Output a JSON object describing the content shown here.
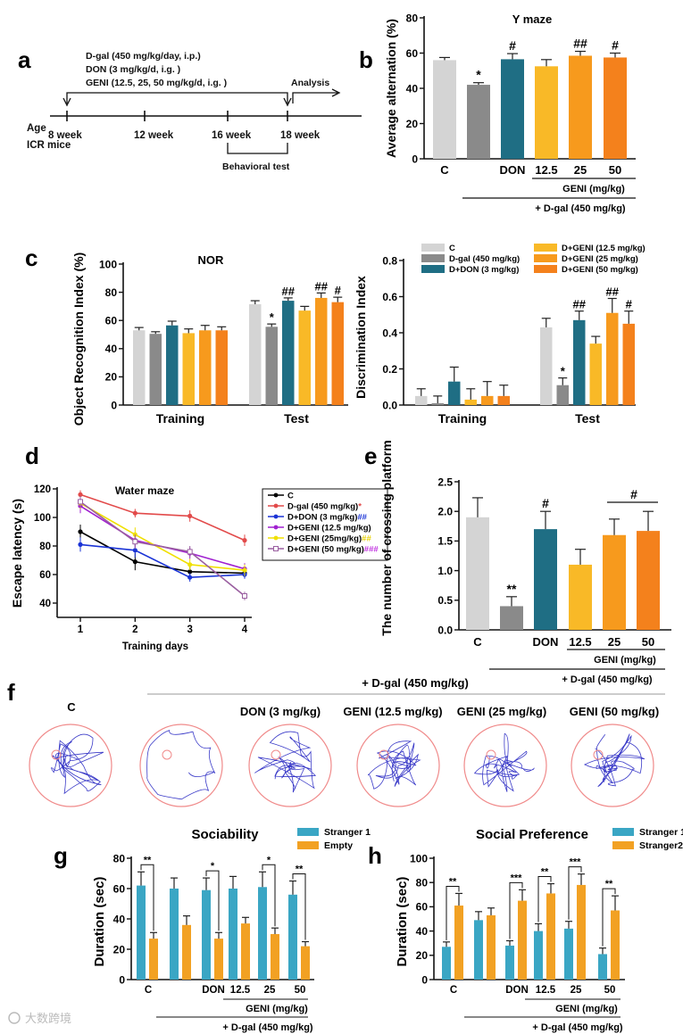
{
  "colors": {
    "C": "#d4d4d4",
    "Dgal": "#8a8a8a",
    "DON": "#1f6e84",
    "G12": "#f9b927",
    "G25": "#f79a1d",
    "G50": "#f4811c",
    "stranger1": "#3aa6c4",
    "empty": "#f2a123",
    "wmC": "#000000",
    "wmDgal": "#e24a4a",
    "wmDON": "#1a33d6",
    "wmG12": "#a020d0",
    "wmG25": "#f0e000",
    "wmG50": "#9a5fa0",
    "track": "#3a3ac8",
    "arena": "#f08a8a",
    "axis": "#222222"
  },
  "watermark": "大数跨境",
  "panels": {
    "a": {
      "letter": "a",
      "lines": [
        "D-gal (450 mg/kg/day, i.p.)",
        "DON (3 mg/kg/d, i.g. )",
        "GENI (12.5, 25, 50 mg/kg/d, i.g. )"
      ],
      "analysis": "Analysis",
      "age": "Age",
      "mice": "ICR mice",
      "weeks": [
        "8 week",
        "12 week",
        "16 week",
        "18 week"
      ],
      "behavioral": "Behavioral test"
    },
    "b": {
      "letter": "b"
    },
    "c": {
      "letter": "c"
    },
    "d": {
      "letter": "d"
    },
    "e": {
      "letter": "e"
    },
    "f": {
      "letter": "f",
      "header": "+ D-gal (450 mg/kg)",
      "labels": [
        "C",
        "",
        "DON (3 mg/kg)",
        "GENI (12.5 mg/kg)",
        "GENI (25 mg/kg)",
        "GENI (50 mg/kg)"
      ]
    },
    "g": {
      "letter": "g"
    },
    "h": {
      "letter": "h"
    }
  },
  "chart_data": [
    {
      "id": "b",
      "type": "bar",
      "title": "Y maze",
      "ylabel": "Average alternation (%)",
      "ylim": [
        0,
        80
      ],
      "yticks": [
        0,
        20,
        40,
        60,
        80
      ],
      "categories": [
        "C",
        "",
        "DON",
        "12.5",
        "25",
        "50"
      ],
      "values": [
        56,
        42,
        56.5,
        52.5,
        58.5,
        57.5
      ],
      "errors": [
        1.5,
        1.2,
        3.2,
        3.8,
        2.5,
        2.5
      ],
      "annotations": [
        "",
        "*",
        "#",
        "",
        "##",
        "#"
      ],
      "group_label": "GENI (mg/kg)",
      "treatment_label": "+ D-gal (450 mg/kg)"
    },
    {
      "id": "c1",
      "type": "bar",
      "title": "NOR",
      "ylabel": "Object Recognition Index (%)",
      "ylim": [
        0,
        100
      ],
      "yticks": [
        0,
        20,
        40,
        60,
        80,
        100
      ],
      "groups": [
        "Training",
        "Test"
      ],
      "series": [
        {
          "name": "C",
          "values": [
            53,
            71.5
          ],
          "errors": [
            2,
            2.5
          ]
        },
        {
          "name": "D-gal (450 mg/kg)",
          "values": [
            50.5,
            55.5
          ],
          "errors": [
            1.5,
            2
          ]
        },
        {
          "name": "D+DON (3 mg/kg)",
          "values": [
            56.5,
            74
          ],
          "errors": [
            3,
            2
          ]
        },
        {
          "name": "D+GENI (12.5 mg/kg)",
          "values": [
            51,
            67
          ],
          "errors": [
            3,
            3
          ]
        },
        {
          "name": "D+GENI (25 mg/kg)",
          "values": [
            53,
            76
          ],
          "errors": [
            3.5,
            3.5
          ]
        },
        {
          "name": "D+GENI (50 mg/kg)",
          "values": [
            53,
            73
          ],
          "errors": [
            2.5,
            3.5
          ]
        }
      ],
      "annotations": [
        [
          "",
          "",
          "",
          "",
          "",
          ""
        ],
        [
          "",
          "*",
          "##",
          "",
          "##",
          "#"
        ]
      ]
    },
    {
      "id": "c2",
      "type": "bar",
      "title": "",
      "ylabel": "Discrimination Index",
      "ylim": [
        0,
        0.8
      ],
      "yticks": [
        "0.0",
        "0.2",
        "0.4",
        "0.6",
        "0.8"
      ],
      "groups": [
        "Training",
        "Test"
      ],
      "series": [
        {
          "name": "C",
          "values": [
            0.05,
            0.43
          ],
          "errors": [
            0.04,
            0.05
          ]
        },
        {
          "name": "D-gal (450 mg/kg)",
          "values": [
            0.01,
            0.11
          ],
          "errors": [
            0.04,
            0.04
          ]
        },
        {
          "name": "D+DON (3 mg/kg)",
          "values": [
            0.13,
            0.47
          ],
          "errors": [
            0.08,
            0.05
          ]
        },
        {
          "name": "D+GENI (12.5 mg/kg)",
          "values": [
            0.03,
            0.34
          ],
          "errors": [
            0.06,
            0.04
          ]
        },
        {
          "name": "D+GENI (25 mg/kg)",
          "values": [
            0.05,
            0.51
          ],
          "errors": [
            0.08,
            0.08
          ]
        },
        {
          "name": "D+GENI (50 mg/kg)",
          "values": [
            0.05,
            0.45
          ],
          "errors": [
            0.06,
            0.07
          ]
        }
      ],
      "annotations": [
        [
          "",
          "",
          "",
          "",
          "",
          ""
        ],
        [
          "",
          "*",
          "##",
          "",
          "##",
          "#"
        ]
      ],
      "legend": [
        "C",
        "D-gal (450 mg/kg)",
        "D+DON (3 mg/kg)",
        "D+GENI (12.5 mg/kg)",
        "D+GENI (25 mg/kg)",
        "D+GENI (50 mg/kg)"
      ]
    },
    {
      "id": "d",
      "type": "line",
      "title": "Water maze",
      "xlabel": "Training days",
      "ylabel": "Escape latency (s)",
      "x": [
        1,
        2,
        3,
        4
      ],
      "ylim": [
        30,
        120
      ],
      "yticks": [
        40,
        60,
        80,
        100,
        120
      ],
      "series": [
        {
          "name": "C",
          "values": [
            90,
            69,
            62,
            61
          ],
          "errors": [
            5,
            6,
            4,
            3
          ],
          "mark": ""
        },
        {
          "name": "D-gal (450 mg/kg)",
          "values": [
            116,
            103,
            101,
            84
          ],
          "errors": [
            3,
            3,
            4,
            4
          ],
          "mark": "*"
        },
        {
          "name": "D+DON (3 mg/kg)",
          "values": [
            81,
            77,
            58,
            60
          ],
          "errors": [
            5,
            5,
            3,
            3
          ],
          "mark": "##"
        },
        {
          "name": "D+GENI (12.5 mg/kg)",
          "values": [
            108,
            84,
            75,
            64
          ],
          "errors": [
            5,
            5,
            4,
            4
          ],
          "mark": ""
        },
        {
          "name": "D+GENI (25mg/kg)",
          "values": [
            110,
            88,
            67,
            63
          ],
          "errors": [
            4,
            5,
            4,
            4
          ],
          "mark": "##"
        },
        {
          "name": "D+GENI (50 mg/kg)",
          "values": [
            111,
            83,
            76,
            45
          ],
          "errors": [
            4,
            5,
            4,
            3
          ],
          "mark": "###"
        }
      ]
    },
    {
      "id": "e",
      "type": "bar",
      "title": "",
      "ylabel": "The number of crossing platform",
      "ylim": [
        0,
        2.5
      ],
      "yticks": [
        "0.0",
        "0.5",
        "1.0",
        "1.5",
        "2.0",
        "2.5"
      ],
      "categories": [
        "C",
        "",
        "DON",
        "12.5",
        "25",
        "50"
      ],
      "values": [
        1.9,
        0.4,
        1.7,
        1.1,
        1.6,
        1.67
      ],
      "errors": [
        0.33,
        0.16,
        0.3,
        0.26,
        0.27,
        0.33
      ],
      "annotations": [
        "",
        "**",
        "#",
        "",
        "#",
        ""
      ],
      "group_label": "GENI (mg/kg)",
      "treatment_label": "+ D-gal (450 mg/kg)"
    },
    {
      "id": "g",
      "type": "bar",
      "title": "Sociability",
      "ylabel": "Duration (sec)",
      "ylim": [
        0,
        80
      ],
      "yticks": [
        0,
        20,
        40,
        60,
        80
      ],
      "categories": [
        "C",
        "",
        "DON",
        "12.5",
        "25",
        "50"
      ],
      "series": [
        {
          "name": "Stranger 1",
          "values": [
            62,
            60,
            59,
            60,
            61,
            56
          ],
          "errors": [
            9,
            7,
            8,
            8,
            10,
            9
          ]
        },
        {
          "name": "Empty",
          "values": [
            27,
            36,
            27,
            37,
            30,
            22
          ],
          "errors": [
            4,
            6,
            4,
            4,
            4,
            3
          ]
        }
      ],
      "annotations": [
        "**",
        "",
        "*",
        "",
        "*",
        "**"
      ],
      "group_label": "GENI (mg/kg)",
      "treatment_label": "+ D-gal (450 mg/kg)"
    },
    {
      "id": "h",
      "type": "bar",
      "title": "Social Preference",
      "ylabel": "Duration (sec)",
      "ylim": [
        0,
        100
      ],
      "yticks": [
        0,
        20,
        40,
        60,
        80,
        100
      ],
      "categories": [
        "C",
        "",
        "DON",
        "12.5",
        "25",
        "50"
      ],
      "series": [
        {
          "name": "Stranger 1",
          "values": [
            27,
            49,
            28,
            40,
            42,
            21
          ],
          "errors": [
            4,
            7,
            4,
            6,
            6,
            5
          ]
        },
        {
          "name": "Stranger2",
          "values": [
            61,
            53,
            65,
            71,
            78,
            57
          ],
          "errors": [
            10,
            6,
            9,
            8,
            9,
            12
          ]
        }
      ],
      "annotations": [
        "**",
        "",
        "***",
        "**",
        "***",
        "**"
      ],
      "group_label": "GENI (mg/kg)",
      "treatment_label": "+ D-gal (450 mg/kg)"
    }
  ]
}
